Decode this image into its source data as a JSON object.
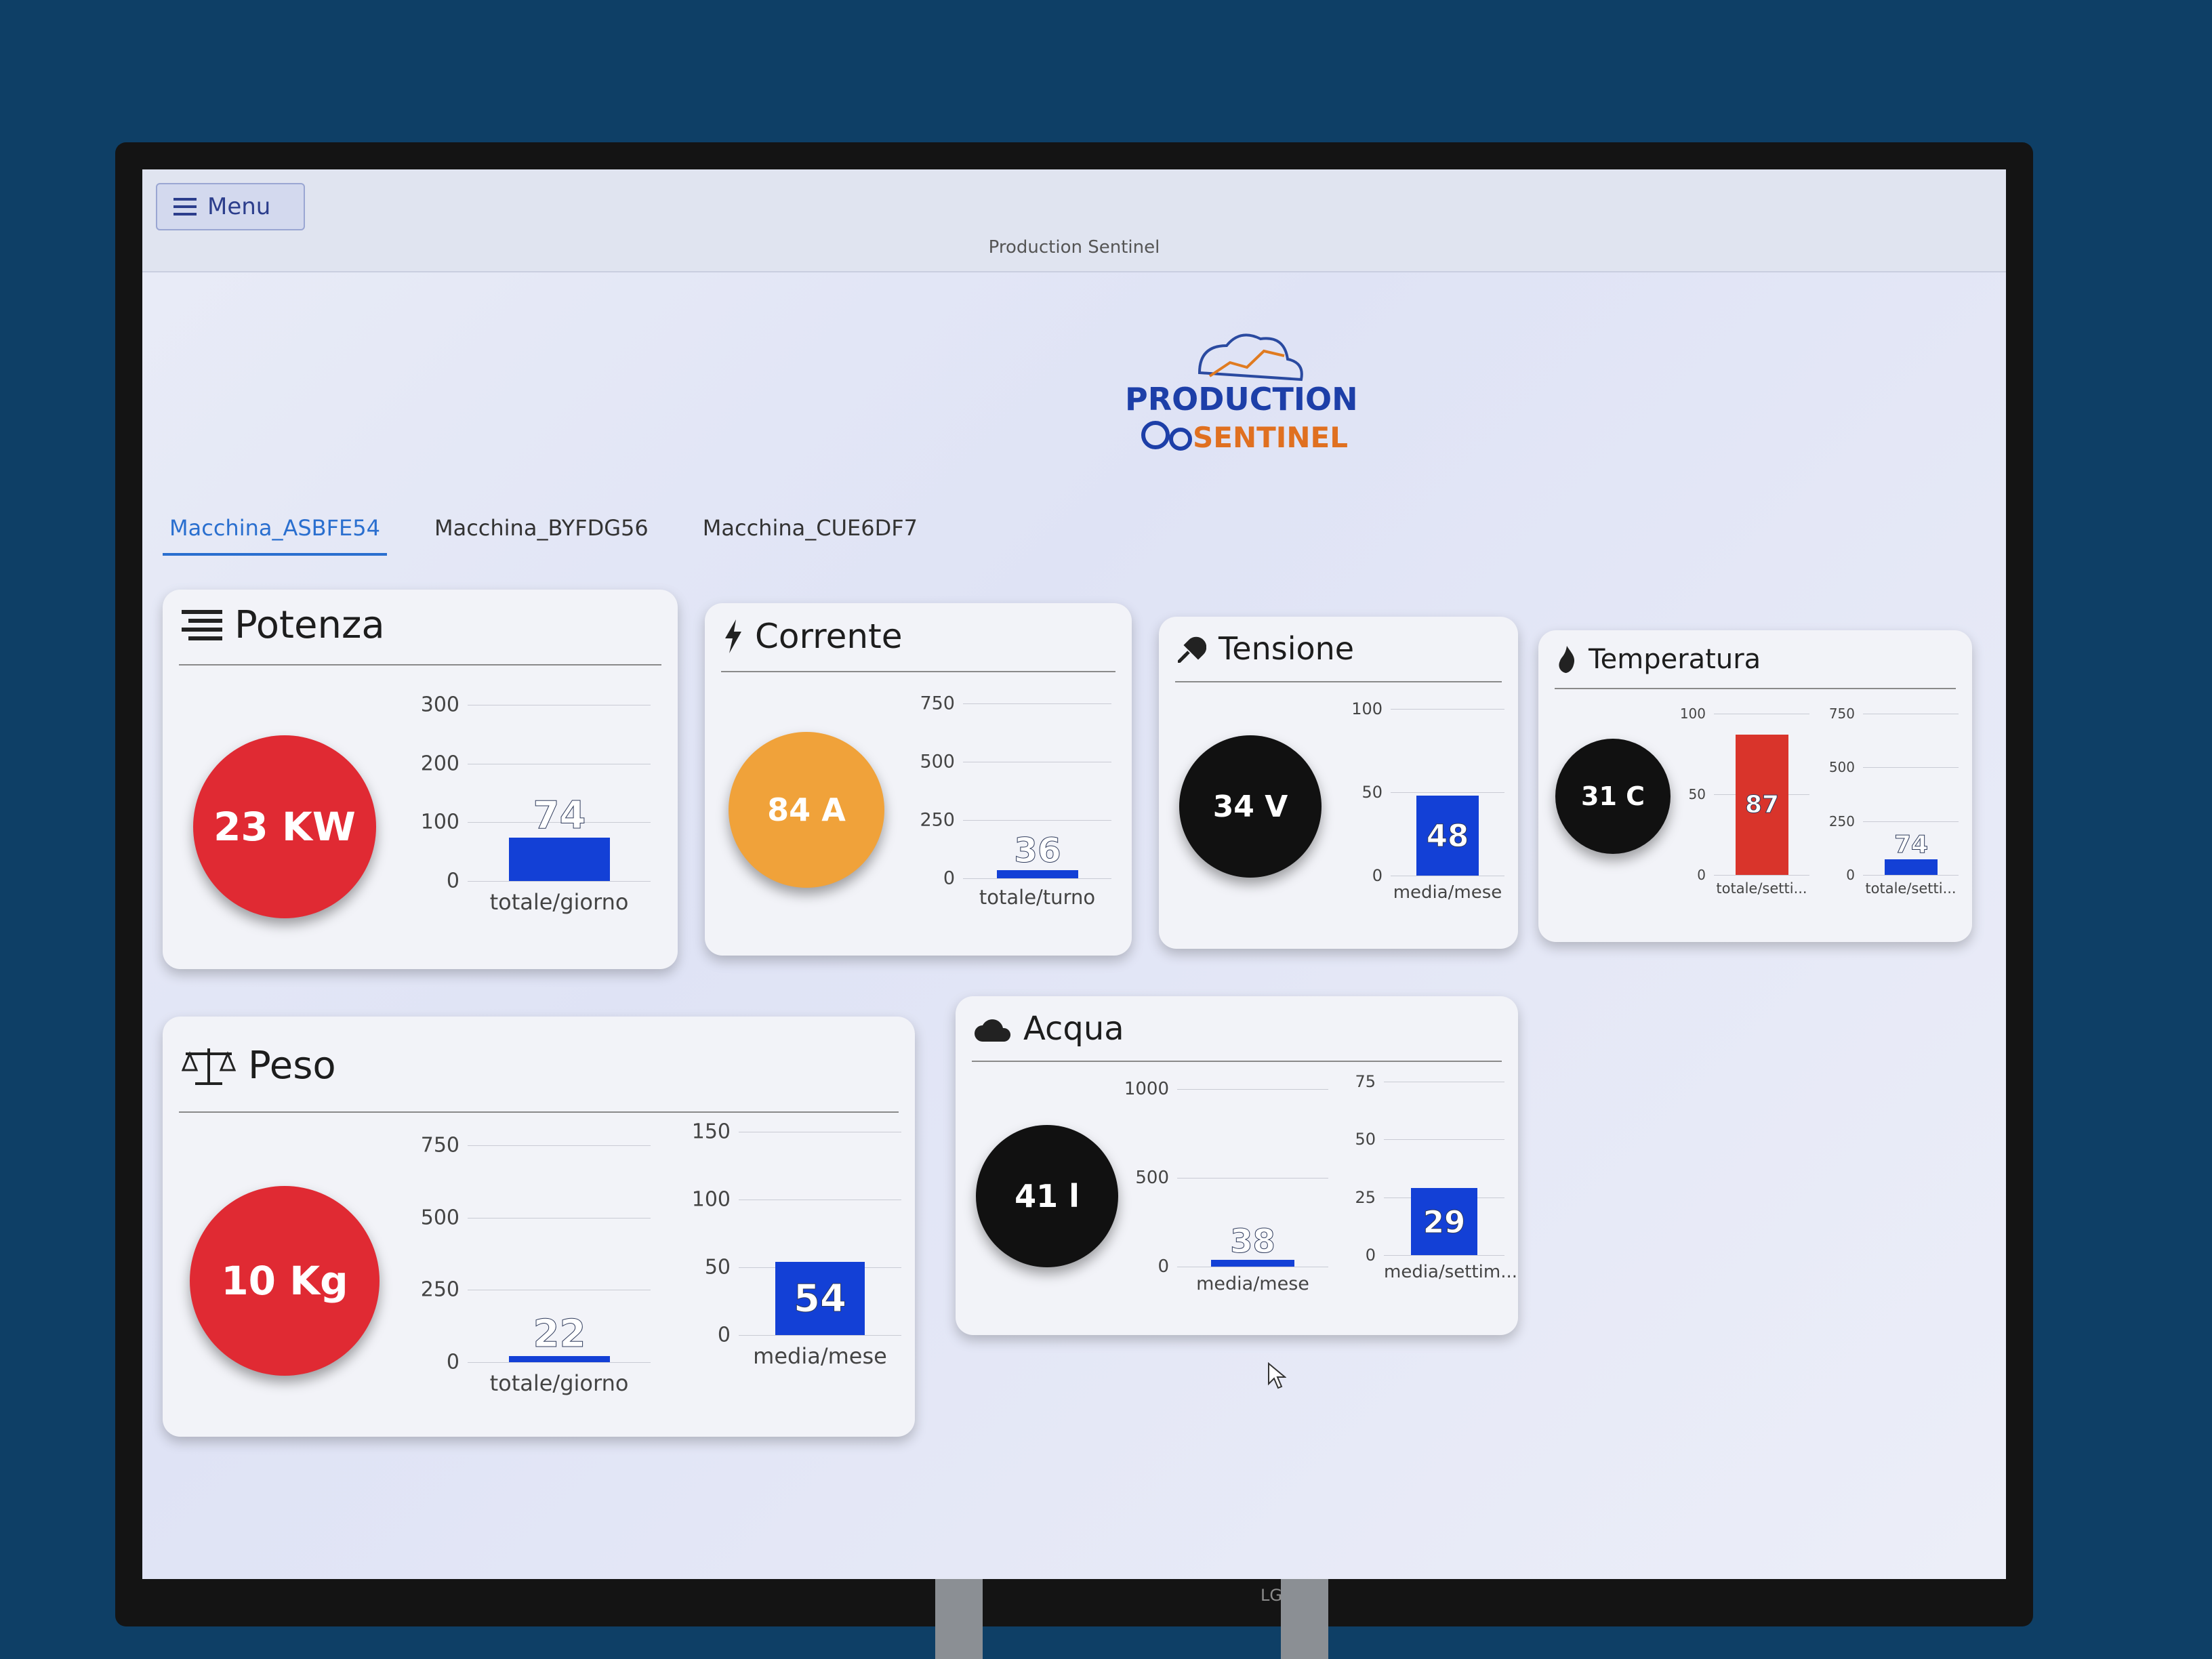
{
  "window": {
    "title": "Production Sentinel"
  },
  "menu": {
    "label": "Menu",
    "icon": "hamburger-icon"
  },
  "logo": {
    "line1": "PRODUCTION",
    "line2": "SENTINEL"
  },
  "tabs": [
    {
      "label": "Macchina_ASBFE54",
      "active": true
    },
    {
      "label": "Macchina_BYFDG56",
      "active": false
    },
    {
      "label": "Macchina_CUE6DF7",
      "active": false
    }
  ],
  "cards": {
    "potenza": {
      "title": "Potenza",
      "icon": "list-icon",
      "gauge": {
        "label": "23 KW",
        "color": "#e02a33"
      },
      "charts": [
        {
          "ticks": [
            "300",
            "200",
            "100",
            "0"
          ],
          "max": 300,
          "value": 74,
          "value_label": "74",
          "bar_color": "#1340d6",
          "xlabel": "totale/giorno"
        }
      ]
    },
    "corrente": {
      "title": "Corrente",
      "icon": "bolt-icon",
      "gauge": {
        "label": "84 A",
        "color": "#f0a23a"
      },
      "charts": [
        {
          "ticks": [
            "750",
            "500",
            "250",
            "0"
          ],
          "max": 750,
          "value": 36,
          "value_label": "36",
          "bar_color": "#1340d6",
          "xlabel": "totale/turno"
        }
      ]
    },
    "tensione": {
      "title": "Tensione",
      "icon": "plug-icon",
      "gauge": {
        "label": "34 V",
        "color": "#111111"
      },
      "charts": [
        {
          "ticks": [
            "100",
            "50",
            "0"
          ],
          "max": 100,
          "value": 48,
          "value_label": "48",
          "bar_color": "#1340d6",
          "xlabel": "media/mese"
        }
      ]
    },
    "temperatura": {
      "title": "Temperatura",
      "icon": "flame-icon",
      "gauge": {
        "label": "31 C",
        "color": "#111111"
      },
      "charts": [
        {
          "ticks": [
            "100",
            "50",
            "0"
          ],
          "max": 100,
          "value": 87,
          "value_label": "87",
          "bar_color": "#d9342b",
          "xlabel": "totale/setti..."
        },
        {
          "ticks": [
            "750",
            "500",
            "250",
            "0"
          ],
          "max": 750,
          "value": 74,
          "value_label": "74",
          "bar_color": "#1340d6",
          "xlabel": "totale/setti..."
        }
      ]
    },
    "peso": {
      "title": "Peso",
      "icon": "scale-icon",
      "gauge": {
        "label": "10 Kg",
        "color": "#e02a33"
      },
      "charts": [
        {
          "ticks": [
            "750",
            "500",
            "250",
            "0"
          ],
          "max": 750,
          "value": 22,
          "value_label": "22",
          "bar_color": "#1340d6",
          "xlabel": "totale/giorno"
        },
        {
          "ticks": [
            "150",
            "100",
            "50",
            "0"
          ],
          "max": 150,
          "value": 54,
          "value_label": "54",
          "bar_color": "#1340d6",
          "xlabel": "media/mese"
        }
      ]
    },
    "acqua": {
      "title": "Acqua",
      "icon": "cloud-icon",
      "gauge": {
        "label": "41 l",
        "color": "#111111"
      },
      "charts": [
        {
          "ticks": [
            "1000",
            "500",
            "0"
          ],
          "max": 1000,
          "value": 38,
          "value_label": "38",
          "bar_color": "#1340d6",
          "xlabel": "media/mese"
        },
        {
          "ticks": [
            "75",
            "50",
            "25",
            "0"
          ],
          "max": 75,
          "value": 29,
          "value_label": "29",
          "bar_color": "#1340d6",
          "xlabel": "media/settim..."
        }
      ]
    }
  },
  "tv_brand": "LG"
}
